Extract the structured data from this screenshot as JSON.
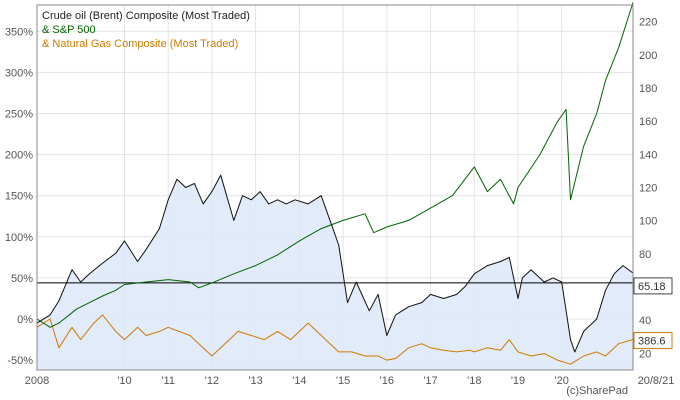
{
  "chart_data": {
    "type": "line",
    "title": "",
    "xlabel": "",
    "ylabel_left": "",
    "ylabel_right": "",
    "x_range": [
      2008.0,
      2021.63
    ],
    "x_ticks": [
      {
        "pos": 2008,
        "label": "2008"
      },
      {
        "pos": 2010,
        "label": "'10"
      },
      {
        "pos": 2011,
        "label": "'11"
      },
      {
        "pos": 2012,
        "label": "'12"
      },
      {
        "pos": 2013,
        "label": "'13"
      },
      {
        "pos": 2014,
        "label": "'14"
      },
      {
        "pos": 2015,
        "label": "'15"
      },
      {
        "pos": 2016,
        "label": "'16"
      },
      {
        "pos": 2017,
        "label": "'17"
      },
      {
        "pos": 2018,
        "label": "'18"
      },
      {
        "pos": 2019,
        "label": "'19"
      },
      {
        "pos": 2020,
        "label": "'20"
      },
      {
        "pos": 2021.63,
        "label": "20/8/21"
      }
    ],
    "left_axis": {
      "range": [
        -62,
        382
      ],
      "ticks": [
        -50,
        0,
        50,
        100,
        150,
        200,
        250,
        300,
        350
      ],
      "tick_labels": [
        "-50%",
        "0%",
        "50%",
        "100%",
        "150%",
        "200%",
        "250%",
        "300%",
        "350%"
      ]
    },
    "right_axis": {
      "range": [
        10,
        230
      ],
      "ticks": [
        20,
        40,
        60,
        80,
        100,
        120,
        140,
        160,
        180,
        200,
        220
      ],
      "tick_labels": [
        "20",
        "40",
        "60",
        "80",
        "100",
        "120",
        "140",
        "160",
        "180",
        "200",
        "220"
      ]
    },
    "reference_line": {
      "axis": "left",
      "value": 44,
      "color": "#000000"
    },
    "series": [
      {
        "name": "Crude oil (Brent) Composite (Most Traded)",
        "legend_label": "Crude oil (Brent) Composite (Most Traded)",
        "color": "#111111",
        "fill": "#dde7f8",
        "axis": "left",
        "last_value_label": "65.18",
        "points": [
          [
            2008.0,
            -5
          ],
          [
            2008.3,
            5
          ],
          [
            2008.5,
            22
          ],
          [
            2008.8,
            60
          ],
          [
            2009.0,
            45
          ],
          [
            2009.2,
            55
          ],
          [
            2009.5,
            68
          ],
          [
            2009.8,
            80
          ],
          [
            2010.0,
            95
          ],
          [
            2010.3,
            70
          ],
          [
            2010.5,
            85
          ],
          [
            2010.8,
            110
          ],
          [
            2011.0,
            145
          ],
          [
            2011.2,
            170
          ],
          [
            2011.4,
            160
          ],
          [
            2011.6,
            165
          ],
          [
            2011.8,
            140
          ],
          [
            2012.0,
            155
          ],
          [
            2012.2,
            175
          ],
          [
            2012.5,
            120
          ],
          [
            2012.7,
            150
          ],
          [
            2012.9,
            145
          ],
          [
            2013.1,
            155
          ],
          [
            2013.3,
            140
          ],
          [
            2013.5,
            145
          ],
          [
            2013.7,
            140
          ],
          [
            2013.9,
            145
          ],
          [
            2014.2,
            140
          ],
          [
            2014.5,
            150
          ],
          [
            2014.7,
            120
          ],
          [
            2014.9,
            90
          ],
          [
            2015.1,
            20
          ],
          [
            2015.3,
            45
          ],
          [
            2015.6,
            10
          ],
          [
            2015.8,
            30
          ],
          [
            2016.0,
            -20
          ],
          [
            2016.2,
            5
          ],
          [
            2016.5,
            15
          ],
          [
            2016.8,
            20
          ],
          [
            2017.0,
            30
          ],
          [
            2017.3,
            25
          ],
          [
            2017.6,
            30
          ],
          [
            2017.8,
            40
          ],
          [
            2018.0,
            55
          ],
          [
            2018.3,
            65
          ],
          [
            2018.6,
            70
          ],
          [
            2018.8,
            75
          ],
          [
            2019.0,
            25
          ],
          [
            2019.1,
            50
          ],
          [
            2019.3,
            60
          ],
          [
            2019.6,
            45
          ],
          [
            2019.8,
            50
          ],
          [
            2020.0,
            45
          ],
          [
            2020.2,
            -25
          ],
          [
            2020.3,
            -40
          ],
          [
            2020.5,
            -15
          ],
          [
            2020.8,
            0
          ],
          [
            2021.0,
            35
          ],
          [
            2021.2,
            55
          ],
          [
            2021.4,
            65
          ],
          [
            2021.63,
            56
          ]
        ]
      },
      {
        "name": "S&P 500",
        "legend_label": "& S&P 500",
        "color": "#006400",
        "axis": "left",
        "points": [
          [
            2008.0,
            0
          ],
          [
            2008.3,
            -10
          ],
          [
            2008.5,
            -5
          ],
          [
            2008.9,
            12
          ],
          [
            2009.2,
            20
          ],
          [
            2009.5,
            28
          ],
          [
            2009.8,
            35
          ],
          [
            2010.0,
            42
          ],
          [
            2010.5,
            45
          ],
          [
            2011.0,
            48
          ],
          [
            2011.5,
            45
          ],
          [
            2011.7,
            38
          ],
          [
            2012.0,
            44
          ],
          [
            2012.5,
            55
          ],
          [
            2013.0,
            65
          ],
          [
            2013.5,
            78
          ],
          [
            2014.0,
            95
          ],
          [
            2014.5,
            110
          ],
          [
            2015.0,
            120
          ],
          [
            2015.5,
            128
          ],
          [
            2015.7,
            105
          ],
          [
            2016.0,
            112
          ],
          [
            2016.5,
            120
          ],
          [
            2017.0,
            135
          ],
          [
            2017.5,
            150
          ],
          [
            2018.0,
            185
          ],
          [
            2018.3,
            155
          ],
          [
            2018.6,
            170
          ],
          [
            2018.9,
            140
          ],
          [
            2019.0,
            160
          ],
          [
            2019.5,
            200
          ],
          [
            2019.9,
            240
          ],
          [
            2020.1,
            255
          ],
          [
            2020.2,
            145
          ],
          [
            2020.5,
            210
          ],
          [
            2020.8,
            250
          ],
          [
            2021.0,
            290
          ],
          [
            2021.3,
            330
          ],
          [
            2021.63,
            385
          ]
        ]
      },
      {
        "name": "Natural Gas Composite (Most Traded)",
        "legend_label": "& Natural Gas Composite (Most Traded)",
        "color": "#cc7a00",
        "axis": "left",
        "last_value_label": "386.6",
        "points": [
          [
            2008.0,
            -10
          ],
          [
            2008.3,
            0
          ],
          [
            2008.5,
            -35
          ],
          [
            2008.8,
            -10
          ],
          [
            2009.0,
            -25
          ],
          [
            2009.3,
            -5
          ],
          [
            2009.5,
            5
          ],
          [
            2009.8,
            -15
          ],
          [
            2010.0,
            -25
          ],
          [
            2010.3,
            -10
          ],
          [
            2010.5,
            -20
          ],
          [
            2010.8,
            -15
          ],
          [
            2011.0,
            -10
          ],
          [
            2011.5,
            -20
          ],
          [
            2012.0,
            -45
          ],
          [
            2012.3,
            -30
          ],
          [
            2012.6,
            -15
          ],
          [
            2012.9,
            -20
          ],
          [
            2013.2,
            -25
          ],
          [
            2013.5,
            -15
          ],
          [
            2013.8,
            -25
          ],
          [
            2014.0,
            -15
          ],
          [
            2014.2,
            -5
          ],
          [
            2014.4,
            -15
          ],
          [
            2014.7,
            -30
          ],
          [
            2014.9,
            -40
          ],
          [
            2015.2,
            -40
          ],
          [
            2015.5,
            -45
          ],
          [
            2015.8,
            -45
          ],
          [
            2016.0,
            -50
          ],
          [
            2016.2,
            -48
          ],
          [
            2016.5,
            -35
          ],
          [
            2016.8,
            -30
          ],
          [
            2017.0,
            -35
          ],
          [
            2017.3,
            -38
          ],
          [
            2017.6,
            -40
          ],
          [
            2017.9,
            -38
          ],
          [
            2018.0,
            -40
          ],
          [
            2018.3,
            -35
          ],
          [
            2018.6,
            -38
          ],
          [
            2018.8,
            -25
          ],
          [
            2019.0,
            -40
          ],
          [
            2019.3,
            -45
          ],
          [
            2019.6,
            -42
          ],
          [
            2019.9,
            -50
          ],
          [
            2020.2,
            -55
          ],
          [
            2020.5,
            -45
          ],
          [
            2020.8,
            -40
          ],
          [
            2021.0,
            -45
          ],
          [
            2021.3,
            -30
          ],
          [
            2021.63,
            -25
          ]
        ]
      }
    ],
    "credit": "(c)SharePad"
  }
}
